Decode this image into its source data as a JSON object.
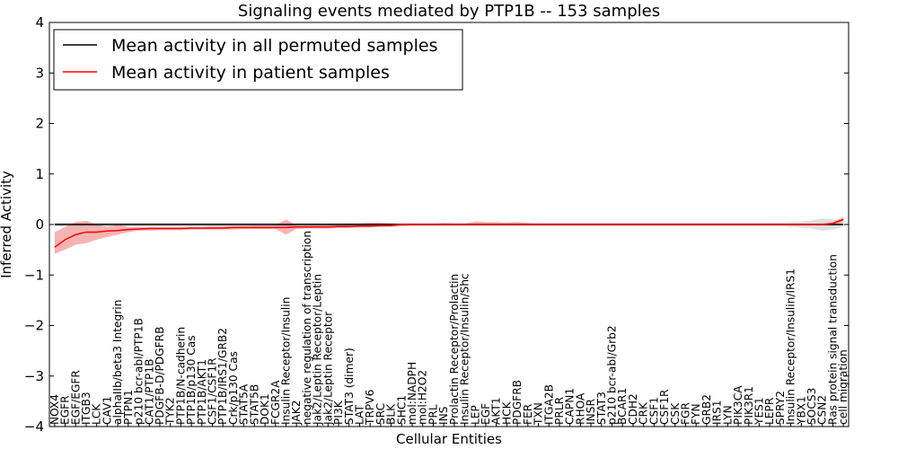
{
  "chart_data": {
    "type": "line",
    "title": "Signaling events mediated by PTP1B -- 153 samples",
    "xlabel": "Cellular Entities",
    "ylabel": "Inferred Activity",
    "ylim": [
      -4,
      4
    ],
    "yticks": [
      -4,
      -3,
      -2,
      -1,
      0,
      1,
      2,
      3,
      4
    ],
    "grid": false,
    "legend_position": "top-left",
    "colors": {
      "permuted": "#000000",
      "patient": "#ff0000",
      "patient_band": "#f08080",
      "permuted_band": "#bfbfbf"
    },
    "categories": [
      "NOX4",
      "EGFR",
      "EGF/EGFR",
      "ITGB3",
      "LCK",
      "CAV1",
      "alphaIIb/beta3 Integrin",
      "PTPN1",
      "p210 bcr-abl/PTP1B",
      "CAT1/PTP1B",
      "PDGFB-D/PDGFRB",
      "TYK2",
      "PTP1B/N-cadherin",
      "PTP1B/p130 Cas",
      "PTP1B/AKT1",
      "CSF1/CSF1R",
      "PTP1B/IRS1/GRB2",
      "Crk/p130 Cas",
      "STAT5A",
      "STAT5B",
      "DOK1",
      "FCGR2A",
      "Insulin Receptor/Insulin",
      "JAK2",
      "negative regulation of transcription",
      "Jak2/Leptin Receptor/Leptin",
      "Jak2/Leptin Receptor",
      "PI3K",
      "STAT3 (dimer)",
      "LAT",
      "TRPV6",
      "SRC",
      "BLK",
      "SHC1",
      "mol:NADPH",
      "mol:H2O2",
      "PRL",
      "INS",
      "Prolactin Receptor/Prolactin",
      "Insulin Receptor/Insulin/Shc",
      "LEP",
      "EGF",
      "AKT1",
      "HCK",
      "PDGFRB",
      "FER",
      "TXN",
      "ITGA2B",
      "PRLR",
      "CAPN1",
      "RHOA",
      "INSR",
      "STAT3",
      "p210 bcr-abl/Grb2",
      "BCAR1",
      "CDH2",
      "CRK",
      "CSF1",
      "CSF1R",
      "CSK",
      "FGR",
      "FYN",
      "GRB2",
      "IRS1",
      "LYN",
      "PIK3CA",
      "PIK3R1",
      "YES1",
      "LEPR",
      "SPRY2",
      "Insulin Receptor/Insulin/IRS1",
      "YBX1",
      "SOCS3",
      "CSN2",
      "Ras protein signal transduction",
      "cell migration"
    ],
    "series": [
      {
        "name": "Mean activity in all permuted samples",
        "values": [
          0.0,
          0.0,
          0.0,
          0.0,
          0.0,
          0.0,
          0.0,
          0.0,
          0.0,
          0.0,
          0.0,
          0.0,
          0.0,
          0.0,
          0.0,
          0.0,
          0.0,
          0.0,
          0.0,
          0.0,
          0.0,
          0.0,
          0.0,
          0.0,
          0.0,
          0.0,
          0.0,
          0.0,
          0.0,
          0.0,
          0.0,
          0.0,
          0.0,
          0.0,
          0.0,
          0.0,
          0.0,
          0.0,
          0.0,
          0.0,
          0.0,
          0.0,
          0.0,
          0.0,
          0.0,
          0.0,
          0.0,
          0.0,
          0.0,
          0.0,
          0.0,
          0.0,
          0.0,
          0.0,
          0.0,
          0.0,
          0.0,
          0.0,
          0.0,
          0.0,
          0.0,
          0.0,
          0.0,
          0.0,
          0.0,
          0.0,
          0.0,
          0.0,
          0.0,
          0.0,
          0.0,
          0.0,
          0.0,
          0.0,
          0.0,
          0.0
        ]
      },
      {
        "name": "Mean activity in patient samples",
        "values": [
          -0.45,
          -0.3,
          -0.2,
          -0.15,
          -0.15,
          -0.13,
          -0.12,
          -0.1,
          -0.09,
          -0.08,
          -0.08,
          -0.08,
          -0.08,
          -0.07,
          -0.07,
          -0.07,
          -0.07,
          -0.06,
          -0.06,
          -0.06,
          -0.06,
          -0.06,
          -0.06,
          -0.05,
          -0.05,
          -0.05,
          -0.05,
          -0.04,
          -0.04,
          -0.03,
          -0.03,
          -0.02,
          -0.02,
          0.0,
          0.0,
          0.0,
          0.0,
          0.0,
          0.0,
          0.0,
          0.0,
          0.0,
          0.0,
          0.0,
          0.0,
          0.0,
          0.0,
          0.0,
          0.0,
          0.0,
          0.0,
          0.0,
          0.0,
          0.0,
          0.0,
          0.0,
          0.0,
          0.0,
          0.0,
          0.0,
          0.0,
          0.0,
          0.0,
          0.0,
          0.0,
          0.0,
          0.0,
          0.0,
          0.0,
          0.0,
          0.0,
          0.0,
          0.0,
          0.0,
          0.02,
          0.1
        ]
      }
    ],
    "patient_band": {
      "upper": [
        -0.15,
        -0.05,
        0.05,
        0.07,
        0.0,
        -0.05,
        0.0,
        -0.05,
        -0.05,
        -0.05,
        -0.05,
        -0.05,
        -0.05,
        -0.05,
        -0.05,
        -0.04,
        -0.04,
        -0.03,
        -0.03,
        -0.02,
        -0.02,
        -0.02,
        0.1,
        -0.02,
        -0.02,
        -0.01,
        -0.01,
        0.0,
        0.02,
        0.02,
        0.03,
        0.03,
        0.02,
        0.01,
        0.02,
        0.01,
        0.01,
        0.03,
        0.02,
        0.02,
        0.06,
        0.05,
        0.05,
        0.04,
        0.05,
        0.03,
        0.02,
        0.02,
        0.02,
        0.02,
        0.02,
        0.02,
        0.02,
        0.02,
        0.02,
        0.02,
        0.02,
        0.02,
        0.02,
        0.02,
        0.02,
        0.02,
        0.02,
        0.02,
        0.02,
        0.02,
        0.02,
        0.02,
        0.02,
        0.02,
        0.02,
        0.02,
        0.02,
        0.02,
        0.05,
        0.15
      ],
      "lower": [
        -0.58,
        -0.5,
        -0.4,
        -0.37,
        -0.3,
        -0.25,
        -0.2,
        -0.15,
        -0.12,
        -0.12,
        -0.11,
        -0.11,
        -0.11,
        -0.1,
        -0.1,
        -0.1,
        -0.1,
        -0.1,
        -0.09,
        -0.09,
        -0.09,
        -0.09,
        -0.2,
        -0.09,
        -0.08,
        -0.08,
        -0.08,
        -0.07,
        -0.07,
        -0.06,
        -0.06,
        -0.05,
        -0.05,
        -0.03,
        -0.02,
        -0.02,
        -0.02,
        -0.02,
        -0.02,
        -0.02,
        -0.02,
        -0.02,
        -0.02,
        -0.02,
        -0.02,
        -0.02,
        -0.02,
        -0.02,
        -0.02,
        -0.02,
        -0.02,
        -0.02,
        -0.02,
        -0.02,
        -0.02,
        -0.02,
        -0.02,
        -0.02,
        -0.02,
        -0.02,
        -0.02,
        -0.02,
        -0.02,
        -0.02,
        -0.02,
        -0.02,
        -0.02,
        -0.02,
        -0.02,
        -0.02,
        -0.02,
        -0.02,
        -0.02,
        -0.02,
        -0.02,
        0.05
      ]
    },
    "permuted_band": {
      "upper": [
        0.04,
        0.04,
        0.04,
        0.04,
        0.04,
        0.04,
        0.04,
        0.04,
        0.04,
        0.04,
        0.04,
        0.04,
        0.04,
        0.04,
        0.04,
        0.04,
        0.04,
        0.04,
        0.04,
        0.04,
        0.04,
        0.04,
        0.04,
        0.04,
        0.04,
        0.04,
        0.04,
        0.04,
        0.04,
        0.04,
        0.04,
        0.04,
        0.03,
        0.03,
        0.03,
        0.03,
        0.03,
        0.03,
        0.03,
        0.03,
        0.03,
        0.03,
        0.03,
        0.03,
        0.03,
        0.03,
        0.03,
        0.03,
        0.03,
        0.03,
        0.03,
        0.03,
        0.03,
        0.03,
        0.03,
        0.03,
        0.03,
        0.03,
        0.03,
        0.03,
        0.03,
        0.03,
        0.03,
        0.03,
        0.03,
        0.03,
        0.03,
        0.03,
        0.03,
        0.03,
        0.05,
        0.06,
        0.08,
        0.12,
        0.1,
        0.05
      ],
      "lower": [
        -0.04,
        -0.04,
        -0.04,
        -0.04,
        -0.04,
        -0.04,
        -0.04,
        -0.04,
        -0.04,
        -0.04,
        -0.04,
        -0.04,
        -0.04,
        -0.04,
        -0.04,
        -0.04,
        -0.04,
        -0.04,
        -0.04,
        -0.04,
        -0.04,
        -0.04,
        -0.04,
        -0.04,
        -0.04,
        -0.04,
        -0.04,
        -0.04,
        -0.04,
        -0.04,
        -0.04,
        -0.04,
        -0.03,
        -0.03,
        -0.03,
        -0.03,
        -0.03,
        -0.03,
        -0.03,
        -0.03,
        -0.03,
        -0.03,
        -0.03,
        -0.03,
        -0.03,
        -0.03,
        -0.03,
        -0.03,
        -0.03,
        -0.03,
        -0.03,
        -0.03,
        -0.03,
        -0.03,
        -0.03,
        -0.03,
        -0.03,
        -0.03,
        -0.03,
        -0.03,
        -0.03,
        -0.03,
        -0.03,
        -0.03,
        -0.03,
        -0.03,
        -0.03,
        -0.03,
        -0.03,
        -0.03,
        -0.05,
        -0.06,
        -0.08,
        -0.12,
        -0.1,
        -0.05
      ]
    }
  }
}
